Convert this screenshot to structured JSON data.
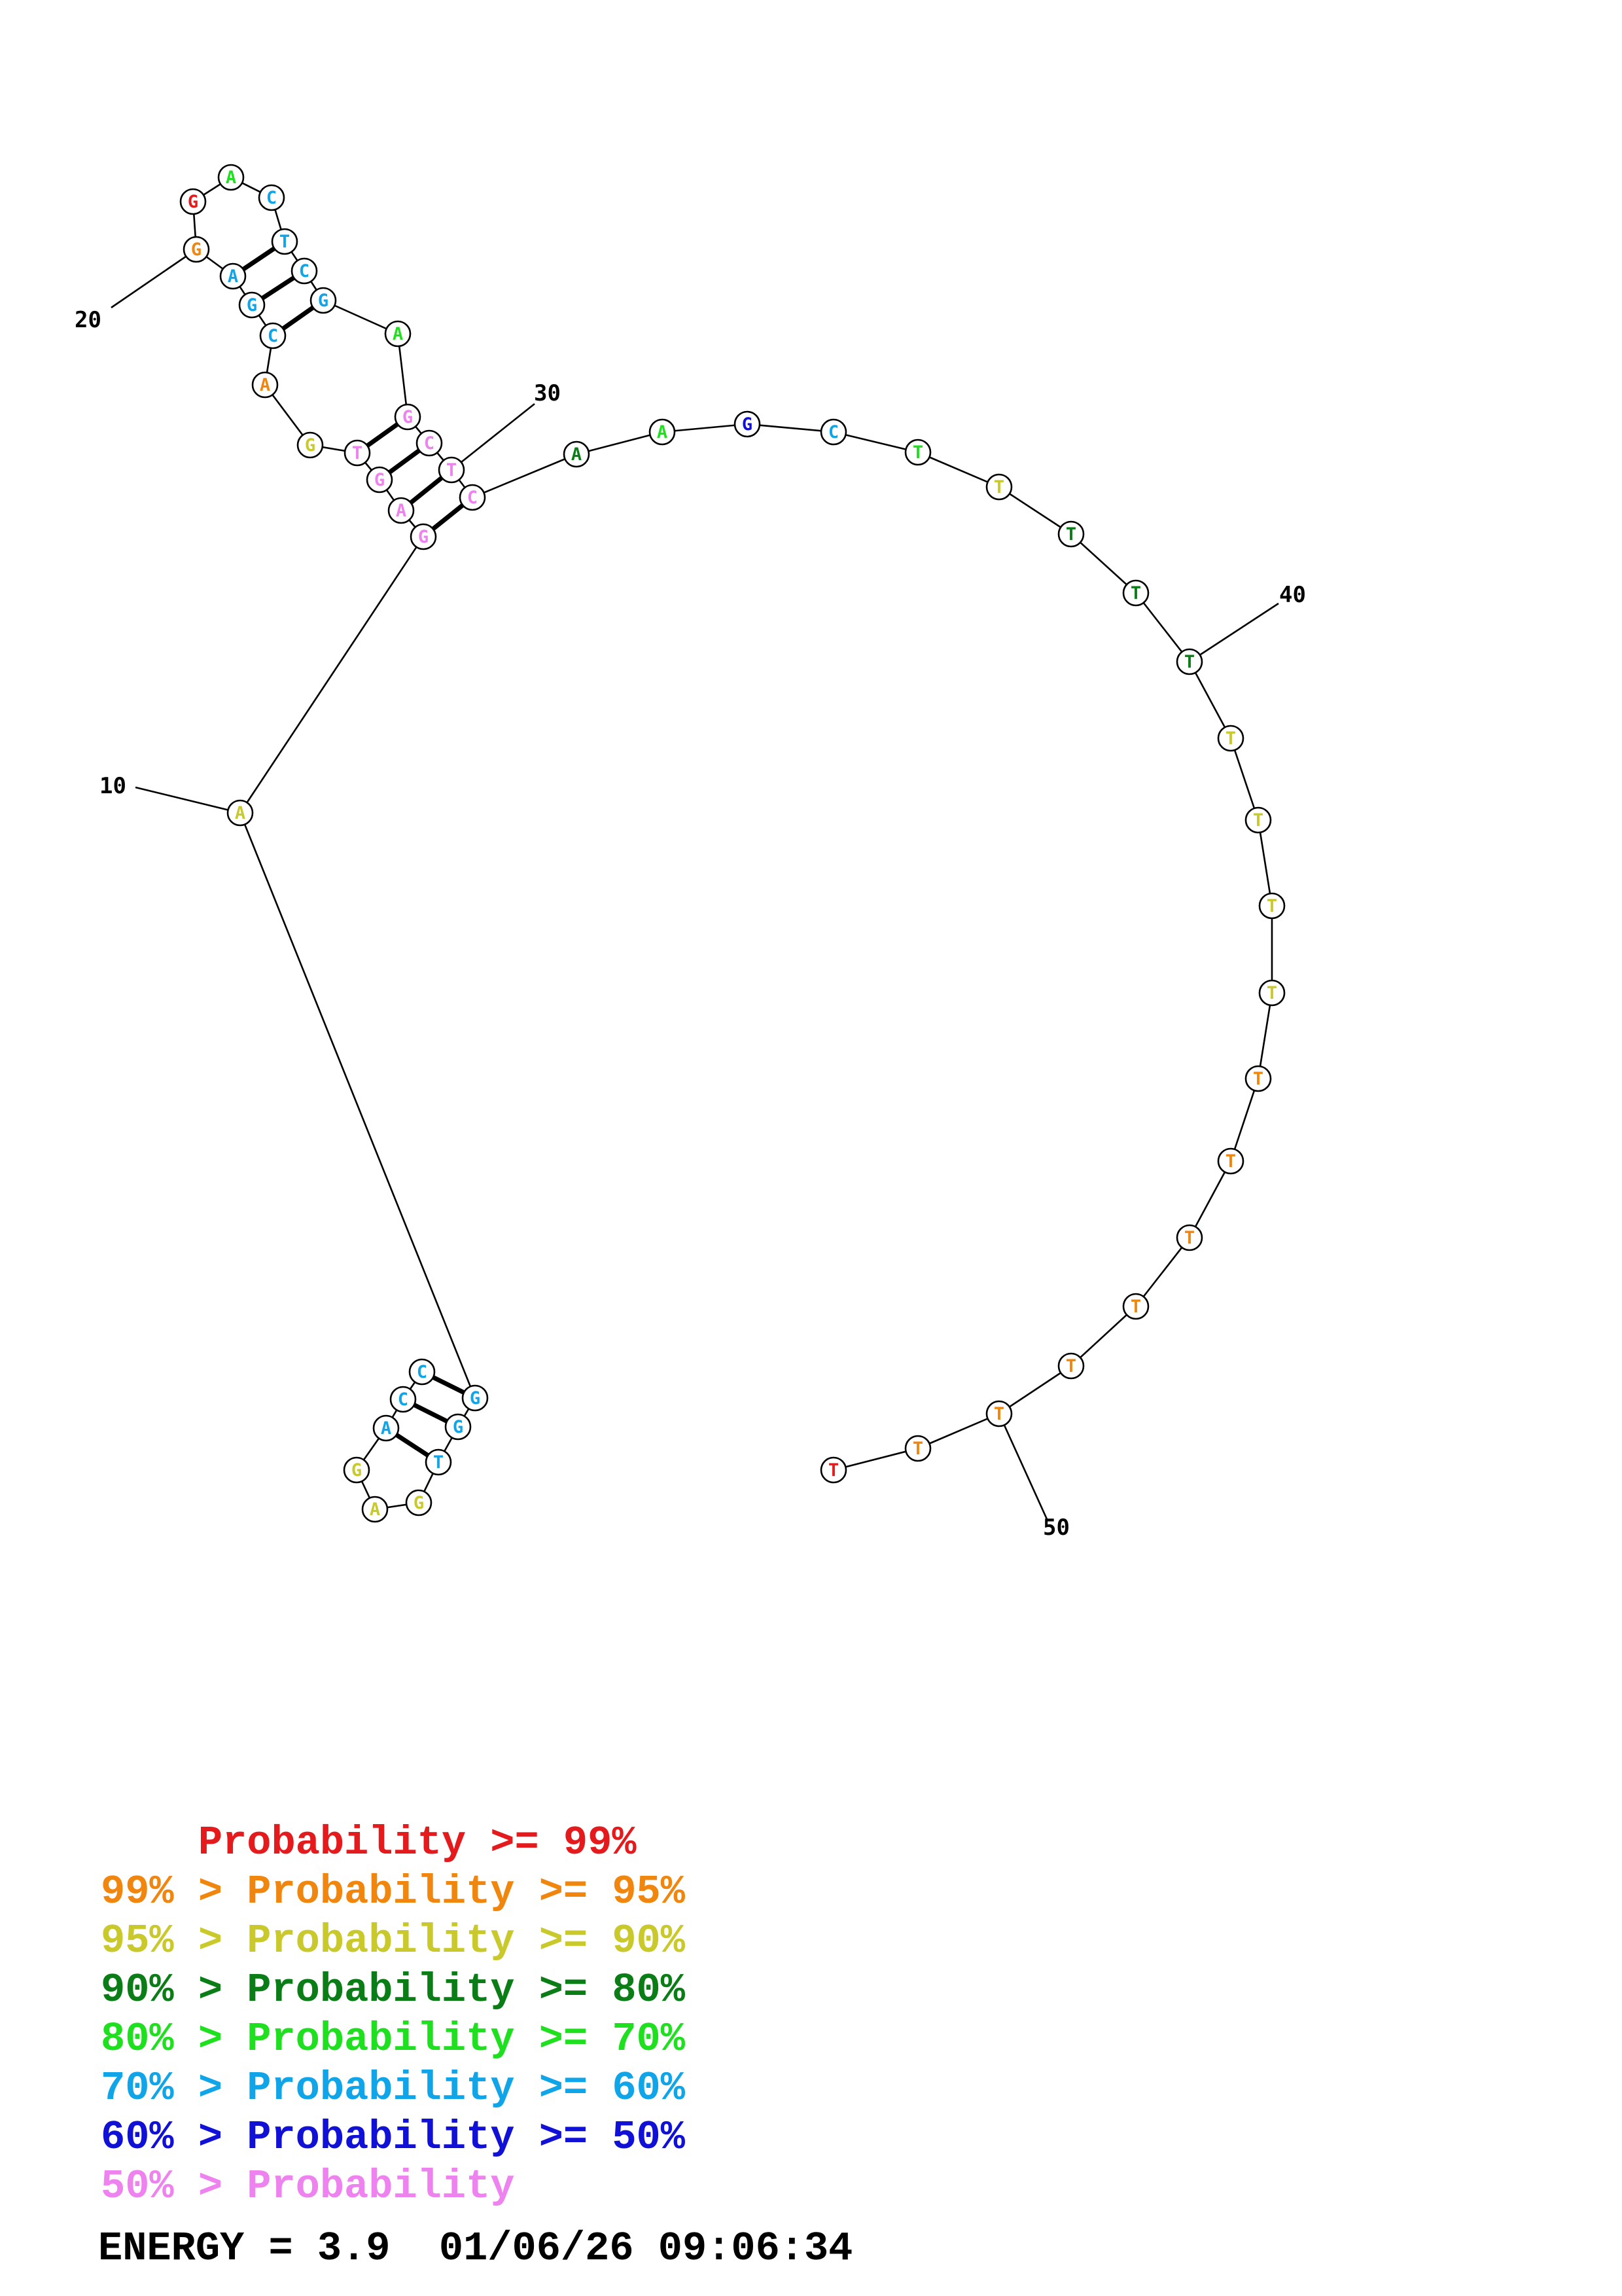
{
  "colors": {
    "p99": "#e41a1c",
    "p95": "#f0860e",
    "p90": "#c9c92c",
    "p80": "#0b7d17",
    "p70": "#1fe01f",
    "p60": "#10a4e8",
    "p50": "#1010d6",
    "plow": "#ee82ee"
  },
  "structure": {
    "bases": [
      {
        "n": 1,
        "b": "C",
        "p": "p60"
      },
      {
        "n": 2,
        "b": "C",
        "p": "p60"
      },
      {
        "n": 3,
        "b": "A",
        "p": "p60"
      },
      {
        "n": 4,
        "b": "G",
        "p": "p90"
      },
      {
        "n": 5,
        "b": "A",
        "p": "p90"
      },
      {
        "n": 6,
        "b": "G",
        "p": "p90"
      },
      {
        "n": 7,
        "b": "T",
        "p": "p60"
      },
      {
        "n": 8,
        "b": "G",
        "p": "p60"
      },
      {
        "n": 9,
        "b": "G",
        "p": "p60"
      },
      {
        "n": 10,
        "b": "A",
        "p": "p90"
      },
      {
        "n": 11,
        "b": "G",
        "p": "plow"
      },
      {
        "n": 12,
        "b": "A",
        "p": "plow"
      },
      {
        "n": 13,
        "b": "G",
        "p": "plow"
      },
      {
        "n": 14,
        "b": "T",
        "p": "plow"
      },
      {
        "n": 15,
        "b": "G",
        "p": "p90"
      },
      {
        "n": 16,
        "b": "A",
        "p": "p95"
      },
      {
        "n": 17,
        "b": "C",
        "p": "p60"
      },
      {
        "n": 18,
        "b": "G",
        "p": "p60"
      },
      {
        "n": 19,
        "b": "A",
        "p": "p60"
      },
      {
        "n": 20,
        "b": "G",
        "p": "p95"
      },
      {
        "n": 21,
        "b": "G",
        "p": "p99"
      },
      {
        "n": 22,
        "b": "A",
        "p": "p70"
      },
      {
        "n": 23,
        "b": "C",
        "p": "p60"
      },
      {
        "n": 24,
        "b": "T",
        "p": "p60"
      },
      {
        "n": 25,
        "b": "C",
        "p": "p60"
      },
      {
        "n": 26,
        "b": "G",
        "p": "p60"
      },
      {
        "n": 27,
        "b": "A",
        "p": "p70"
      },
      {
        "n": 28,
        "b": "G",
        "p": "plow"
      },
      {
        "n": 29,
        "b": "C",
        "p": "plow"
      },
      {
        "n": 30,
        "b": "T",
        "p": "plow"
      },
      {
        "n": 31,
        "b": "C",
        "p": "plow"
      },
      {
        "n": 32,
        "b": "A",
        "p": "p80"
      },
      {
        "n": 33,
        "b": "A",
        "p": "p70"
      },
      {
        "n": 34,
        "b": "G",
        "p": "p50"
      },
      {
        "n": 35,
        "b": "C",
        "p": "p60"
      },
      {
        "n": 36,
        "b": "T",
        "p": "p70"
      },
      {
        "n": 37,
        "b": "T",
        "p": "p90"
      },
      {
        "n": 38,
        "b": "T",
        "p": "p80"
      },
      {
        "n": 39,
        "b": "T",
        "p": "p80"
      },
      {
        "n": 40,
        "b": "T",
        "p": "p80"
      },
      {
        "n": 41,
        "b": "T",
        "p": "p90"
      },
      {
        "n": 42,
        "b": "T",
        "p": "p90"
      },
      {
        "n": 43,
        "b": "T",
        "p": "p90"
      },
      {
        "n": 44,
        "b": "T",
        "p": "p90"
      },
      {
        "n": 45,
        "b": "T",
        "p": "p95"
      },
      {
        "n": 46,
        "b": "T",
        "p": "p95"
      },
      {
        "n": 47,
        "b": "T",
        "p": "p95"
      },
      {
        "n": 48,
        "b": "T",
        "p": "p95"
      },
      {
        "n": 49,
        "b": "T",
        "p": "p95"
      },
      {
        "n": 50,
        "b": "T",
        "p": "p95"
      },
      {
        "n": 51,
        "b": "T",
        "p": "p95"
      },
      {
        "n": 52,
        "b": "T",
        "p": "p99"
      }
    ],
    "pairs": [
      [
        1,
        9
      ],
      [
        2,
        8
      ],
      [
        3,
        7
      ],
      [
        11,
        31
      ],
      [
        12,
        30
      ],
      [
        13,
        29
      ],
      [
        14,
        28
      ],
      [
        17,
        26
      ],
      [
        18,
        25
      ],
      [
        19,
        24
      ]
    ],
    "tick_labels": [
      "10",
      "20",
      "30",
      "40",
      "50"
    ]
  },
  "legend": {
    "lines": [
      {
        "text": "    Probability >= 99%",
        "p": "p99"
      },
      {
        "text": "99% > Probability >= 95%",
        "p": "p95"
      },
      {
        "text": "95% > Probability >= 90%",
        "p": "p90"
      },
      {
        "text": "90% > Probability >= 80%",
        "p": "p80"
      },
      {
        "text": "80% > Probability >= 70%",
        "p": "p70"
      },
      {
        "text": "70% > Probability >= 60%",
        "p": "p60"
      },
      {
        "text": "60% > Probability >= 50%",
        "p": "p50"
      },
      {
        "text": "50% > Probability",
        "p": "plow"
      }
    ],
    "energy": "ENERGY = 3.9  01/06/26 09:06:34"
  }
}
